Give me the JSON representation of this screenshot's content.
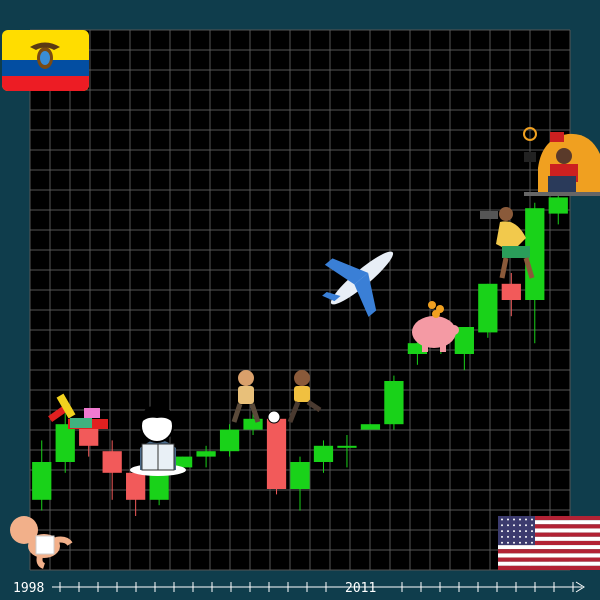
{
  "colors": {
    "background": "#0f3d4c",
    "plot_bg": "#000000",
    "grid": "#555555",
    "up": "#19d219",
    "down": "#f25a5a",
    "timeline": "#ffffff"
  },
  "timeline": {
    "start_label": "1998",
    "mid_label": "2011"
  },
  "decorations": {
    "top_left": "ecuador-flag",
    "bottom_right": "usa-flag",
    "bottom_left": "baby",
    "illustrations": [
      "toys",
      "child-reading",
      "children-playing-soccer",
      "airplane",
      "piggy-bank",
      "photographer",
      "person-at-laptop"
    ]
  },
  "chart_data": {
    "type": "candlestick",
    "ylim": [
      0,
      100
    ],
    "candles": [
      {
        "open": 13,
        "close": 20,
        "high": 24,
        "low": 11
      },
      {
        "open": 20,
        "close": 27,
        "high": 29,
        "low": 18
      },
      {
        "open": 27,
        "close": 23,
        "high": 29,
        "low": 21
      },
      {
        "open": 22,
        "close": 18,
        "high": 24,
        "low": 13
      },
      {
        "open": 18,
        "close": 13,
        "high": 19,
        "low": 10
      },
      {
        "open": 13,
        "close": 18,
        "high": 19,
        "low": 12
      },
      {
        "open": 19,
        "close": 21,
        "high": 21,
        "low": 18
      },
      {
        "open": 21,
        "close": 22,
        "high": 23,
        "low": 19
      },
      {
        "open": 22,
        "close": 26,
        "high": 27,
        "low": 21
      },
      {
        "open": 26,
        "close": 28,
        "high": 30,
        "low": 25
      },
      {
        "open": 28,
        "close": 15,
        "high": 29,
        "low": 14
      },
      {
        "open": 15,
        "close": 20,
        "high": 21,
        "low": 11
      },
      {
        "open": 20,
        "close": 23,
        "high": 24,
        "low": 18
      },
      {
        "open": 23,
        "close": 23,
        "high": 25,
        "low": 19
      },
      {
        "open": 26,
        "close": 27,
        "high": 27,
        "low": 26
      },
      {
        "open": 27,
        "close": 35,
        "high": 36,
        "low": 26
      },
      {
        "open": 40,
        "close": 42,
        "high": 43,
        "low": 38
      },
      {
        "open": 44,
        "close": 44,
        "high": 44,
        "low": 40
      },
      {
        "open": 40,
        "close": 45,
        "high": 45,
        "low": 37
      },
      {
        "open": 44,
        "close": 53,
        "high": 53,
        "low": 43
      },
      {
        "open": 53,
        "close": 50,
        "high": 55,
        "low": 47
      },
      {
        "open": 50,
        "close": 67,
        "high": 68,
        "low": 42
      },
      {
        "open": 66,
        "close": 69,
        "high": 70,
        "low": 64
      }
    ]
  }
}
